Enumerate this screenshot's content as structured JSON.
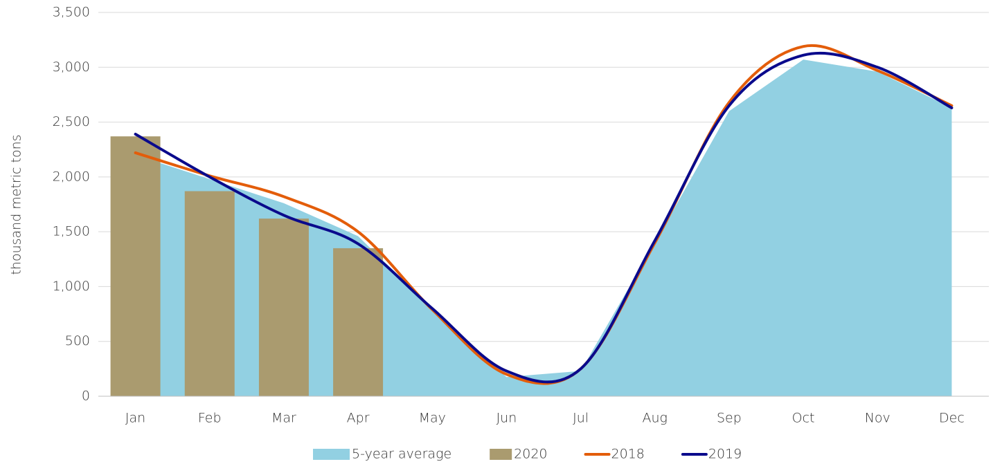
{
  "chart_data": {
    "type": "combo",
    "y_label": "thousand metric tons",
    "categories": [
      "Jan",
      "Feb",
      "Mar",
      "Apr",
      "May",
      "Jun",
      "Jul",
      "Aug",
      "Sep",
      "Oct",
      "Nov",
      "Dec"
    ],
    "series": [
      {
        "name": "5-year average",
        "type": "area",
        "color": "#92d0e2",
        "values": [
          2200,
          1980,
          1760,
          1460,
          800,
          175,
          230,
          1400,
          2600,
          3070,
          2960,
          2630
        ]
      },
      {
        "name": "2020",
        "type": "bar",
        "color": "#aa9b6f",
        "values": [
          2370,
          1870,
          1620,
          1350,
          null,
          null,
          null,
          null,
          null,
          null,
          null,
          null
        ]
      },
      {
        "name": "2018",
        "type": "line",
        "color": "#e35d0a",
        "values": [
          2220,
          2010,
          1820,
          1500,
          790,
          200,
          250,
          1400,
          2680,
          3190,
          2970,
          2650
        ]
      },
      {
        "name": "2019",
        "type": "line",
        "color": "#0a0a8c",
        "values": [
          2390,
          2000,
          1650,
          1390,
          800,
          230,
          250,
          1420,
          2650,
          3110,
          3000,
          2630
        ]
      }
    ],
    "ylim": [
      0,
      3500
    ],
    "yticks": [
      0,
      500,
      {
        "value": 1000,
        "label": "1,000"
      },
      {
        "value": 1500,
        "label": "1,500"
      },
      {
        "value": 2000,
        "label": "2,000"
      },
      {
        "value": 2500,
        "label": "2,500"
      },
      {
        "value": 3000,
        "label": "3,000"
      },
      {
        "value": 3500,
        "label": "3,500"
      }
    ],
    "grid": true,
    "legend": "bottom"
  }
}
